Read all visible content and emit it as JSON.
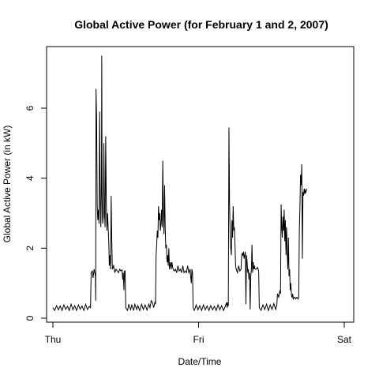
{
  "chart_data": {
    "type": "line",
    "title": "Global Active Power (for February 1 and 2, 2007)",
    "xlabel": "Date/Time",
    "ylabel": "Global Active Power (in kW)",
    "xticks": [
      {
        "value": 0,
        "label": "Thu"
      },
      {
        "value": 24,
        "label": "Fri"
      },
      {
        "value": 48,
        "label": "Sat"
      }
    ],
    "yticks": [
      0,
      2,
      4,
      6
    ],
    "xlim": [
      0,
      48
    ],
    "ylim": [
      0,
      7.5
    ],
    "grid": false,
    "series": [
      {
        "color": "#000000",
        "x_unit": "hours since Thu 00:00",
        "points": [
          [
            0.0,
            0.3
          ],
          [
            0.3,
            0.22
          ],
          [
            0.6,
            0.36
          ],
          [
            0.9,
            0.24
          ],
          [
            1.2,
            0.35
          ],
          [
            1.5,
            0.22
          ],
          [
            1.8,
            0.38
          ],
          [
            2.1,
            0.25
          ],
          [
            2.4,
            0.34
          ],
          [
            2.7,
            0.22
          ],
          [
            3.0,
            0.4
          ],
          [
            3.3,
            0.24
          ],
          [
            3.6,
            0.36
          ],
          [
            3.9,
            0.22
          ],
          [
            4.2,
            0.38
          ],
          [
            4.5,
            0.26
          ],
          [
            4.8,
            0.35
          ],
          [
            5.1,
            0.22
          ],
          [
            5.4,
            0.4
          ],
          [
            5.7,
            0.25
          ],
          [
            6.0,
            0.34
          ],
          [
            6.2,
            0.3
          ],
          [
            6.3,
            1.3
          ],
          [
            6.5,
            1.35
          ],
          [
            6.6,
            1.15
          ],
          [
            6.8,
            1.4
          ],
          [
            7.0,
            1.2
          ],
          [
            7.05,
            0.5
          ],
          [
            7.1,
            6.55
          ],
          [
            7.2,
            5.7
          ],
          [
            7.3,
            3.2
          ],
          [
            7.4,
            2.8
          ],
          [
            7.5,
            3.1
          ],
          [
            7.6,
            2.7
          ],
          [
            7.7,
            5.9
          ],
          [
            7.8,
            3.4
          ],
          [
            7.9,
            2.6
          ],
          [
            8.0,
            4.0
          ],
          [
            8.05,
            7.5
          ],
          [
            8.1,
            3.5
          ],
          [
            8.2,
            2.7
          ],
          [
            8.3,
            2.9
          ],
          [
            8.4,
            5.0
          ],
          [
            8.5,
            3.0
          ],
          [
            8.6,
            2.6
          ],
          [
            8.7,
            5.2
          ],
          [
            8.8,
            3.3
          ],
          [
            8.9,
            2.5
          ],
          [
            9.0,
            3.0
          ],
          [
            9.2,
            2.2
          ],
          [
            9.3,
            1.5
          ],
          [
            9.4,
            1.8
          ],
          [
            9.5,
            1.4
          ],
          [
            9.6,
            3.5
          ],
          [
            9.7,
            2.2
          ],
          [
            9.8,
            1.4
          ],
          [
            10.0,
            1.5
          ],
          [
            10.2,
            1.3
          ],
          [
            10.4,
            1.4
          ],
          [
            10.6,
            1.35
          ],
          [
            10.8,
            1.3
          ],
          [
            11.0,
            1.4
          ],
          [
            11.2,
            1.35
          ],
          [
            11.4,
            1.38
          ],
          [
            11.5,
            1.1
          ],
          [
            11.6,
            1.3
          ],
          [
            11.7,
            0.8
          ],
          [
            11.8,
            1.35
          ],
          [
            11.9,
            1.35
          ],
          [
            12.0,
            0.3
          ],
          [
            12.3,
            0.22
          ],
          [
            12.5,
            0.4
          ],
          [
            12.8,
            0.24
          ],
          [
            13.0,
            0.38
          ],
          [
            13.3,
            0.22
          ],
          [
            13.5,
            0.4
          ],
          [
            13.8,
            0.25
          ],
          [
            14.0,
            0.36
          ],
          [
            14.3,
            0.22
          ],
          [
            14.6,
            0.4
          ],
          [
            14.9,
            0.25
          ],
          [
            15.2,
            0.38
          ],
          [
            15.5,
            0.23
          ],
          [
            15.8,
            0.4
          ],
          [
            16.0,
            0.3
          ],
          [
            16.2,
            0.5
          ],
          [
            16.4,
            0.45
          ],
          [
            16.6,
            0.3
          ],
          [
            16.8,
            0.45
          ],
          [
            16.9,
            0.4
          ],
          [
            17.0,
            1.8
          ],
          [
            17.1,
            2.1
          ],
          [
            17.2,
            2.5
          ],
          [
            17.3,
            2.3
          ],
          [
            17.4,
            3.2
          ],
          [
            17.5,
            2.8
          ],
          [
            17.6,
            3.0
          ],
          [
            17.7,
            2.5
          ],
          [
            17.8,
            2.7
          ],
          [
            17.9,
            3.1
          ],
          [
            18.0,
            2.6
          ],
          [
            18.1,
            4.5
          ],
          [
            18.2,
            3.0
          ],
          [
            18.3,
            2.4
          ],
          [
            18.4,
            3.8
          ],
          [
            18.5,
            2.6
          ],
          [
            18.6,
            2.0
          ],
          [
            18.7,
            2.1
          ],
          [
            18.8,
            1.6
          ],
          [
            18.9,
            1.8
          ],
          [
            19.0,
            1.5
          ],
          [
            19.1,
            2.0
          ],
          [
            19.2,
            1.4
          ],
          [
            19.3,
            1.5
          ],
          [
            19.4,
            1.6
          ],
          [
            19.5,
            1.4
          ],
          [
            19.6,
            1.6
          ],
          [
            19.7,
            1.5
          ],
          [
            19.8,
            1.4
          ],
          [
            20.0,
            1.35
          ],
          [
            20.2,
            1.4
          ],
          [
            20.4,
            1.3
          ],
          [
            20.6,
            1.5
          ],
          [
            20.8,
            1.35
          ],
          [
            21.0,
            1.4
          ],
          [
            21.2,
            1.3
          ],
          [
            21.4,
            1.5
          ],
          [
            21.6,
            1.3
          ],
          [
            21.8,
            1.35
          ],
          [
            22.0,
            1.3
          ],
          [
            22.2,
            1.5
          ],
          [
            22.4,
            1.3
          ],
          [
            22.6,
            1.4
          ],
          [
            22.8,
            1.0
          ],
          [
            22.9,
            1.4
          ],
          [
            23.0,
            1.3
          ],
          [
            23.1,
            0.3
          ],
          [
            23.3,
            0.22
          ],
          [
            23.6,
            0.38
          ],
          [
            23.9,
            0.24
          ],
          [
            24.2,
            0.36
          ],
          [
            24.5,
            0.22
          ],
          [
            24.8,
            0.38
          ],
          [
            25.1,
            0.24
          ],
          [
            25.4,
            0.35
          ],
          [
            25.7,
            0.22
          ],
          [
            26.0,
            0.36
          ],
          [
            26.3,
            0.24
          ],
          [
            26.6,
            0.34
          ],
          [
            26.9,
            0.22
          ],
          [
            27.2,
            0.38
          ],
          [
            27.5,
            0.24
          ],
          [
            27.8,
            0.36
          ],
          [
            28.1,
            0.22
          ],
          [
            28.4,
            0.34
          ],
          [
            28.6,
            0.45
          ],
          [
            28.7,
            0.3
          ],
          [
            28.8,
            0.45
          ],
          [
            28.9,
            0.35
          ],
          [
            29.0,
            5.45
          ],
          [
            29.1,
            3.3
          ],
          [
            29.2,
            2.4
          ],
          [
            29.3,
            2.0
          ],
          [
            29.4,
            1.8
          ],
          [
            29.5,
            2.8
          ],
          [
            29.6,
            2.3
          ],
          [
            29.7,
            3.2
          ],
          [
            29.8,
            2.5
          ],
          [
            29.9,
            2.6
          ],
          [
            30.0,
            2.1
          ],
          [
            30.1,
            1.5
          ],
          [
            30.2,
            1.4
          ],
          [
            30.4,
            1.3
          ],
          [
            30.6,
            1.5
          ],
          [
            30.8,
            1.35
          ],
          [
            31.0,
            1.4
          ],
          [
            31.1,
            1.8
          ],
          [
            31.2,
            1.85
          ],
          [
            31.3,
            1.8
          ],
          [
            31.4,
            1.9
          ],
          [
            31.5,
            1.7
          ],
          [
            31.6,
            1.8
          ],
          [
            31.7,
            1.9
          ],
          [
            31.8,
            0.4
          ],
          [
            31.9,
            1.8
          ],
          [
            32.0,
            1.6
          ],
          [
            32.1,
            1.3
          ],
          [
            32.2,
            1.4
          ],
          [
            32.3,
            1.1
          ],
          [
            32.4,
            1.3
          ],
          [
            32.5,
            0.25
          ],
          [
            32.6,
            1.2
          ],
          [
            32.7,
            1.4
          ],
          [
            32.8,
            2.1
          ],
          [
            32.9,
            1.3
          ],
          [
            33.0,
            1.6
          ],
          [
            33.1,
            1.4
          ],
          [
            33.2,
            1.5
          ],
          [
            33.3,
            1.4
          ],
          [
            33.5,
            1.4
          ],
          [
            33.7,
            1.45
          ],
          [
            33.9,
            1.35
          ],
          [
            34.0,
            0.3
          ],
          [
            34.3,
            0.22
          ],
          [
            34.6,
            0.38
          ],
          [
            34.9,
            0.25
          ],
          [
            35.2,
            0.4
          ],
          [
            35.5,
            0.22
          ],
          [
            35.8,
            0.38
          ],
          [
            36.1,
            0.25
          ],
          [
            36.4,
            0.42
          ],
          [
            36.7,
            0.25
          ],
          [
            36.9,
            0.4
          ],
          [
            37.0,
            0.7
          ],
          [
            37.2,
            0.6
          ],
          [
            37.4,
            0.8
          ],
          [
            37.5,
            0.7
          ],
          [
            37.6,
            3.25
          ],
          [
            37.7,
            2.6
          ],
          [
            37.8,
            2.3
          ],
          [
            37.9,
            2.9
          ],
          [
            38.0,
            2.5
          ],
          [
            38.1,
            3.1
          ],
          [
            38.2,
            2.2
          ],
          [
            38.3,
            2.8
          ],
          [
            38.4,
            1.8
          ],
          [
            38.5,
            2.6
          ],
          [
            38.6,
            1.9
          ],
          [
            38.7,
            1.4
          ],
          [
            38.8,
            2.3
          ],
          [
            38.9,
            1.2
          ],
          [
            39.0,
            1.4
          ],
          [
            39.1,
            0.8
          ],
          [
            39.2,
            1.0
          ],
          [
            39.3,
            0.65
          ],
          [
            39.4,
            0.6
          ],
          [
            39.5,
            0.7
          ],
          [
            39.6,
            0.55
          ],
          [
            39.8,
            0.6
          ],
          [
            40.0,
            0.55
          ],
          [
            40.2,
            0.6
          ],
          [
            40.4,
            0.55
          ],
          [
            40.5,
            0.6
          ],
          [
            40.6,
            2.5
          ],
          [
            40.7,
            3.2
          ],
          [
            40.8,
            4.1
          ],
          [
            40.9,
            3.8
          ],
          [
            41.0,
            4.4
          ],
          [
            41.1,
            1.7
          ],
          [
            41.2,
            3.6
          ],
          [
            41.3,
            3.5
          ],
          [
            41.4,
            3.7
          ],
          [
            41.5,
            3.55
          ],
          [
            41.6,
            3.65
          ],
          [
            41.7,
            3.6
          ],
          [
            41.8,
            3.7
          ]
        ]
      }
    ]
  }
}
